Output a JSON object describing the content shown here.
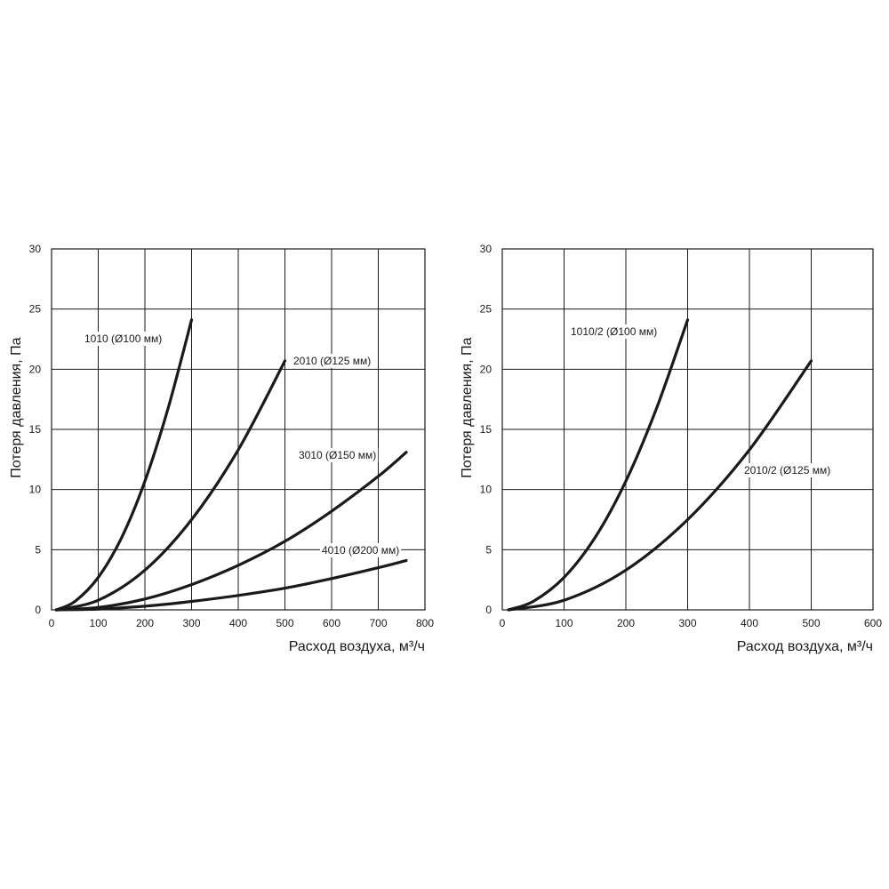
{
  "chart_data": [
    {
      "type": "line",
      "xlabel": "Расход воздуха, м³/ч",
      "ylabel": "Потеря давления, Па",
      "xlim": [
        0,
        800
      ],
      "ylim": [
        0,
        30
      ],
      "x_ticks": [
        "0",
        "100",
        "200",
        "300",
        "400",
        "500",
        "600",
        "700",
        "800"
      ],
      "y_ticks": [
        "0",
        "5",
        "10",
        "15",
        "20",
        "25",
        "30"
      ],
      "grid": true,
      "series": [
        {
          "name": "1010 (Ø100 мм)",
          "x": [
            10,
            50,
            100,
            150,
            200,
            250,
            300
          ],
          "y": [
            0,
            0.7,
            2.7,
            6.0,
            10.7,
            16.8,
            24.1
          ]
        },
        {
          "name": "2010 (Ø125 мм)",
          "x": [
            10,
            100,
            200,
            300,
            400,
            500
          ],
          "y": [
            0,
            0.8,
            3.3,
            7.5,
            13.3,
            20.7
          ]
        },
        {
          "name": "3010 (Ø150 мм)",
          "x": [
            10,
            100,
            200,
            300,
            400,
            500,
            600,
            700,
            760
          ],
          "y": [
            0,
            0.2,
            0.9,
            2.1,
            3.7,
            5.7,
            8.2,
            11.1,
            13.1
          ]
        },
        {
          "name": "4010 (Ø200 мм)",
          "x": [
            10,
            100,
            200,
            300,
            400,
            500,
            600,
            700,
            760
          ],
          "y": [
            0,
            0.07,
            0.3,
            0.7,
            1.2,
            1.8,
            2.6,
            3.5,
            4.1
          ]
        }
      ]
    },
    {
      "type": "line",
      "xlabel": "Расход воздуха, м³/ч",
      "ylabel": "Потеря давления, Па",
      "xlim": [
        0,
        600
      ],
      "ylim": [
        0,
        30
      ],
      "x_ticks": [
        "0",
        "100",
        "200",
        "300",
        "400",
        "500",
        "600"
      ],
      "y_ticks": [
        "0",
        "5",
        "10",
        "15",
        "20",
        "25",
        "30"
      ],
      "grid": true,
      "series": [
        {
          "name": "1010/2 (Ø100 мм)",
          "x": [
            10,
            50,
            100,
            150,
            200,
            250,
            300
          ],
          "y": [
            0,
            0.7,
            2.7,
            6.0,
            10.7,
            16.8,
            24.1
          ]
        },
        {
          "name": "2010/2 (Ø125 мм)",
          "x": [
            10,
            100,
            200,
            300,
            400,
            500
          ],
          "y": [
            0,
            0.8,
            3.3,
            7.5,
            13.3,
            20.7
          ]
        }
      ]
    }
  ]
}
